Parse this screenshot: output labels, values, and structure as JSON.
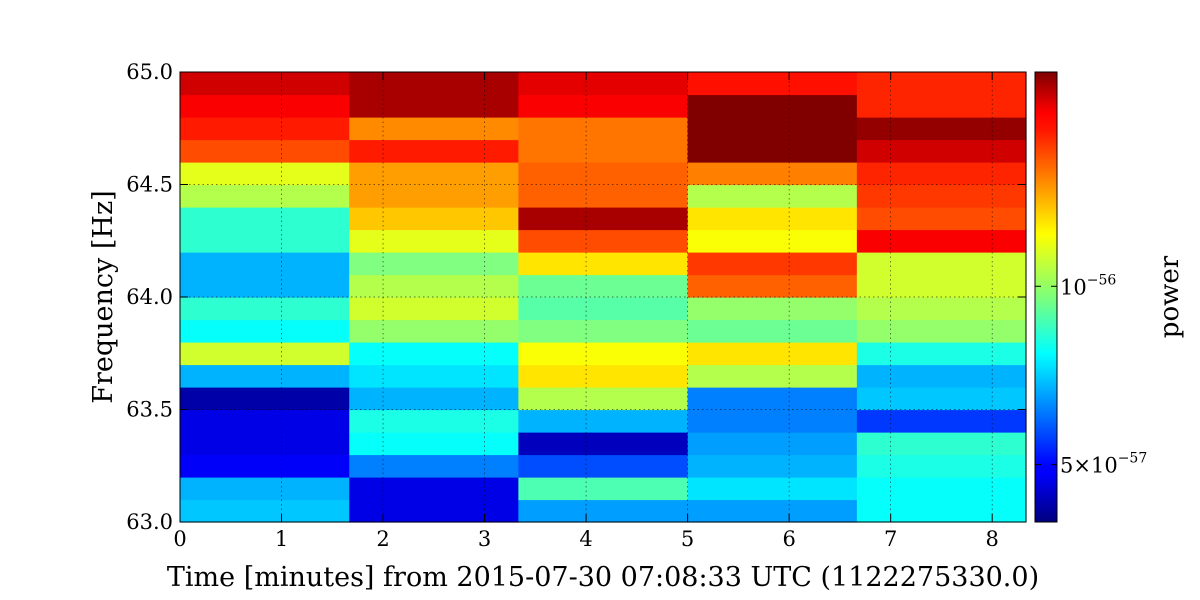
{
  "chart_data": {
    "type": "heatmap",
    "title": "",
    "xlabel": "Time [minutes] from 2015-07-30 07:08:33 UTC (1122275330.0)",
    "ylabel": "Frequency [Hz]",
    "xlim": [
      0,
      8.333
    ],
    "ylim": [
      63.0,
      65.0
    ],
    "x_ticks": [
      0,
      1,
      2,
      3,
      4,
      5,
      6,
      7,
      8
    ],
    "x_tick_labels": [
      "0",
      "1",
      "2",
      "3",
      "4",
      "5",
      "6",
      "7",
      "8"
    ],
    "y_ticks": [
      63.0,
      63.5,
      64.0,
      64.5,
      65.0
    ],
    "y_tick_labels": [
      "63.0",
      "63.5",
      "64.0",
      "64.5",
      "65.0"
    ],
    "grid": true,
    "colorscale": "jet",
    "color_scale_type": "log",
    "colorbar": {
      "label": "power",
      "range": [
        4e-57,
        2.3e-56
      ],
      "ticks": [
        {
          "value": 5e-57,
          "label_base": "5×10",
          "label_exp": "−57"
        },
        {
          "value": 1e-56,
          "label_base": "10",
          "label_exp": "−56"
        }
      ]
    },
    "x_edges": [
      0,
      1.667,
      3.333,
      5.0,
      6.667,
      8.333
    ],
    "y_edges": [
      63.0,
      63.1,
      63.2,
      63.3,
      63.4,
      63.5,
      63.6,
      63.7,
      63.8,
      63.9,
      64.0,
      64.1,
      64.2,
      64.3,
      64.4,
      64.5,
      64.6,
      64.7,
      64.8,
      64.9,
      65.0
    ],
    "columns": [
      {
        "x_start": 0,
        "x_end": 1.667,
        "values": [
          0.32,
          0.3,
          0.12,
          0.1,
          0.1,
          0.04,
          0.3,
          0.58,
          0.38,
          0.42,
          0.3,
          0.3,
          0.42,
          0.42,
          0.55,
          0.6,
          0.8,
          0.85,
          0.88,
          0.92
        ]
      },
      {
        "x_start": 1.667,
        "x_end": 3.333,
        "values": [
          0.1,
          0.1,
          0.25,
          0.38,
          0.4,
          0.3,
          0.35,
          0.38,
          0.52,
          0.58,
          0.55,
          0.5,
          0.6,
          0.68,
          0.72,
          0.72,
          0.85,
          0.74,
          0.96,
          0.96
        ]
      },
      {
        "x_start": 3.333,
        "x_end": 5.0,
        "values": [
          0.28,
          0.45,
          0.2,
          0.06,
          0.3,
          0.55,
          0.65,
          0.62,
          0.5,
          0.46,
          0.48,
          0.65,
          0.8,
          0.96,
          0.78,
          0.78,
          0.76,
          0.76,
          0.88,
          0.9
        ]
      },
      {
        "x_start": 5.0,
        "x_end": 6.667,
        "values": [
          0.28,
          0.35,
          0.3,
          0.28,
          0.25,
          0.25,
          0.55,
          0.65,
          0.48,
          0.52,
          0.78,
          0.82,
          0.62,
          0.65,
          0.55,
          0.75,
          1.0,
          1.05,
          1.05,
          0.86
        ]
      },
      {
        "x_start": 6.667,
        "x_end": 8.333,
        "values": [
          0.38,
          0.38,
          0.4,
          0.42,
          0.18,
          0.32,
          0.3,
          0.4,
          0.52,
          0.55,
          0.58,
          0.58,
          0.88,
          0.8,
          0.82,
          0.84,
          0.92,
          0.98,
          0.84,
          0.84
        ]
      }
    ]
  }
}
